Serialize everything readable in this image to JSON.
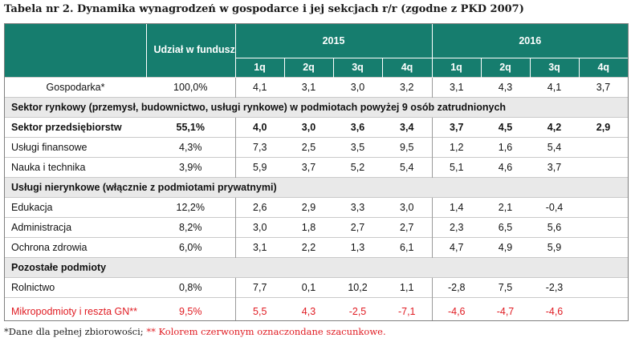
{
  "title": "Tabela nr 2. Dynamika wynagrodzeń w gospodarce i jej sekcjach r/r (zgodne z PKD 2007)",
  "header": {
    "share_label": "Udział w funduszu płac",
    "years": [
      "2015",
      "2016"
    ],
    "quarters": [
      "1q",
      "2q",
      "3q",
      "4q",
      "1q",
      "2q",
      "3q",
      "4q"
    ]
  },
  "rows": {
    "gospodarka": {
      "label": "Gospodarka*",
      "share": "100,0%",
      "values": [
        "4,1",
        "3,1",
        "3,0",
        "3,2",
        "3,1",
        "4,3",
        "4,1",
        "3,7"
      ]
    },
    "section1": "Sektor rynkowy (przemysł, budownictwo, usługi rynkowe) w podmiotach powyżej 9 osób zatrudnionych",
    "sektor": {
      "label": "Sektor przedsiębiorstw",
      "share": "55,1%",
      "values": [
        "4,0",
        "3,0",
        "3,6",
        "3,4",
        "3,7",
        "4,5",
        "4,2",
        "2,9"
      ]
    },
    "uslugi_fin": {
      "label": "Usługi finansowe",
      "share": "4,3%",
      "values": [
        "7,3",
        "2,5",
        "3,5",
        "9,5",
        "1,2",
        "1,6",
        "5,4",
        ""
      ]
    },
    "nauka": {
      "label": "Nauka i technika",
      "share": "3,9%",
      "values": [
        "5,9",
        "3,7",
        "5,2",
        "5,4",
        "5,1",
        "4,6",
        "3,7",
        ""
      ]
    },
    "section2": "Usługi nierynkowe (włącznie z podmiotami prywatnymi)",
    "edukacja": {
      "label": "Edukacja",
      "share": "12,2%",
      "values": [
        "2,6",
        "2,9",
        "3,3",
        "3,0",
        "1,4",
        "2,1",
        "-0,4",
        ""
      ]
    },
    "administracja": {
      "label": "Administracja",
      "share": "8,2%",
      "values": [
        "3,0",
        "1,8",
        "2,7",
        "2,7",
        "2,3",
        "6,5",
        "5,6",
        ""
      ]
    },
    "ochrona": {
      "label": "Ochrona zdrowia",
      "share": "6,0%",
      "values": [
        "3,1",
        "2,2",
        "1,3",
        "6,1",
        "4,7",
        "4,9",
        "5,9",
        ""
      ]
    },
    "section3": "Pozostałe podmioty",
    "rolnictwo": {
      "label": "Rolnictwo",
      "share": "0,8%",
      "values": [
        "7,7",
        "0,1",
        "10,2",
        "1,1",
        "-2,8",
        "7,5",
        "-2,3",
        ""
      ]
    },
    "mikro": {
      "label": "Mikropodmioty i reszta GN**",
      "share": "9,5%",
      "values": [
        "5,5",
        "4,3",
        "-2,5",
        "-7,1",
        "-4,6",
        "-4,7",
        "-4,6",
        ""
      ]
    }
  },
  "footnote": {
    "part1": "*Dane dla pełnej zbiorowości; ",
    "part2": "** Kolorem czerwonym oznaczondane szacunkowe."
  },
  "colors": {
    "header_bg": "#167d6e",
    "section_bg": "#e9e9e9",
    "estimate_red": "#e01b22"
  }
}
